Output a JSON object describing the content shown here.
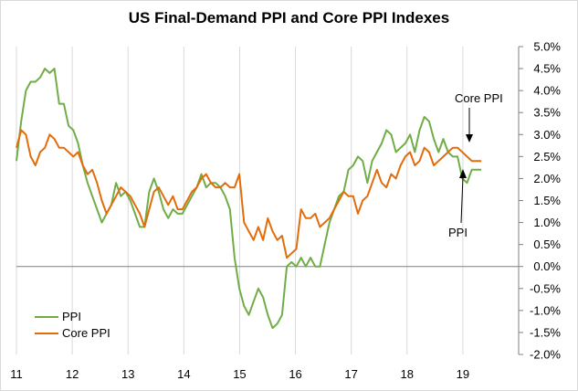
{
  "chart_data": {
    "type": "line",
    "title": "US Final-Demand PPI and Core PPI Indexes",
    "xlabel": "",
    "ylabel": "",
    "x_ticks": [
      "11",
      "12",
      "13",
      "14",
      "15",
      "16",
      "17",
      "18",
      "19"
    ],
    "x_start": 2011.0,
    "x_end": 2020.0,
    "ylim": [
      -2.0,
      5.0
    ],
    "y_ticks": [
      "5.0%",
      "4.5%",
      "4.0%",
      "3.5%",
      "3.0%",
      "2.5%",
      "2.0%",
      "1.5%",
      "1.0%",
      "0.5%",
      "0.0%",
      "-0.5%",
      "-1.0%",
      "-1.5%",
      "-2.0%"
    ],
    "y_values": [
      5.0,
      4.5,
      4.0,
      3.5,
      3.0,
      2.5,
      2.0,
      1.5,
      1.0,
      0.5,
      0.0,
      -0.5,
      -1.0,
      -1.5,
      -2.0
    ],
    "grid": "vertical",
    "legend_position": "bottom-left",
    "colors": {
      "ppi": "#70ad47",
      "core": "#e36c0a",
      "grid": "#d9d9d9",
      "axis": "#808080"
    },
    "series": [
      {
        "name": "PPI",
        "color": "#70ad47",
        "values": [
          2.4,
          3.3,
          4.0,
          4.2,
          4.2,
          4.3,
          4.5,
          4.4,
          4.5,
          3.7,
          3.7,
          3.2,
          3.1,
          2.8,
          2.3,
          1.9,
          1.6,
          1.3,
          1.0,
          1.2,
          1.4,
          1.9,
          1.6,
          1.7,
          1.5,
          1.2,
          0.9,
          0.9,
          1.7,
          2.0,
          1.7,
          1.3,
          1.1,
          1.3,
          1.2,
          1.2,
          1.4,
          1.6,
          1.8,
          2.1,
          1.8,
          1.9,
          1.9,
          1.8,
          1.6,
          1.3,
          0.2,
          -0.5,
          -0.9,
          -1.1,
          -0.8,
          -0.5,
          -0.7,
          -1.1,
          -1.4,
          -1.3,
          -1.1,
          0.0,
          0.1,
          0.0,
          0.2,
          0.0,
          0.2,
          0.0,
          0.0,
          0.5,
          1.0,
          1.3,
          1.6,
          1.7,
          2.2,
          2.3,
          2.5,
          2.4,
          1.9,
          2.4,
          2.6,
          2.8,
          3.1,
          3.0,
          2.6,
          2.7,
          2.8,
          3.0,
          2.6,
          3.1,
          3.4,
          3.3,
          2.9,
          2.6,
          2.9,
          2.6,
          2.5,
          2.5,
          2.0,
          1.9,
          2.2,
          2.2,
          2.2
        ]
      },
      {
        "name": "Core PPI",
        "color": "#e36c0a",
        "values": [
          2.7,
          3.1,
          3.0,
          2.5,
          2.3,
          2.6,
          2.7,
          3.0,
          2.9,
          2.7,
          2.7,
          2.6,
          2.5,
          2.6,
          2.3,
          2.1,
          2.2,
          1.9,
          1.5,
          1.2,
          1.4,
          1.6,
          1.8,
          1.7,
          1.6,
          1.4,
          1.2,
          0.9,
          1.3,
          1.7,
          1.8,
          1.6,
          1.4,
          1.6,
          1.3,
          1.3,
          1.5,
          1.7,
          1.8,
          2.0,
          2.1,
          1.9,
          1.8,
          1.8,
          1.9,
          1.8,
          1.8,
          2.1,
          1.0,
          0.8,
          0.6,
          0.9,
          0.6,
          1.1,
          0.8,
          0.6,
          0.7,
          0.2,
          0.3,
          0.4,
          1.3,
          1.1,
          1.1,
          1.2,
          0.9,
          1.0,
          1.1,
          1.3,
          1.5,
          1.7,
          1.6,
          1.6,
          1.2,
          1.5,
          1.6,
          1.9,
          2.2,
          1.9,
          1.8,
          2.1,
          2.0,
          2.3,
          2.5,
          2.6,
          2.3,
          2.4,
          2.7,
          2.6,
          2.3,
          2.4,
          2.5,
          2.6,
          2.7,
          2.7,
          2.6,
          2.5,
          2.4,
          2.4,
          2.4
        ]
      }
    ],
    "annotations": [
      {
        "text": "Core PPI",
        "target_series": "Core PPI"
      },
      {
        "text": "PPI",
        "target_series": "PPI"
      }
    ]
  }
}
